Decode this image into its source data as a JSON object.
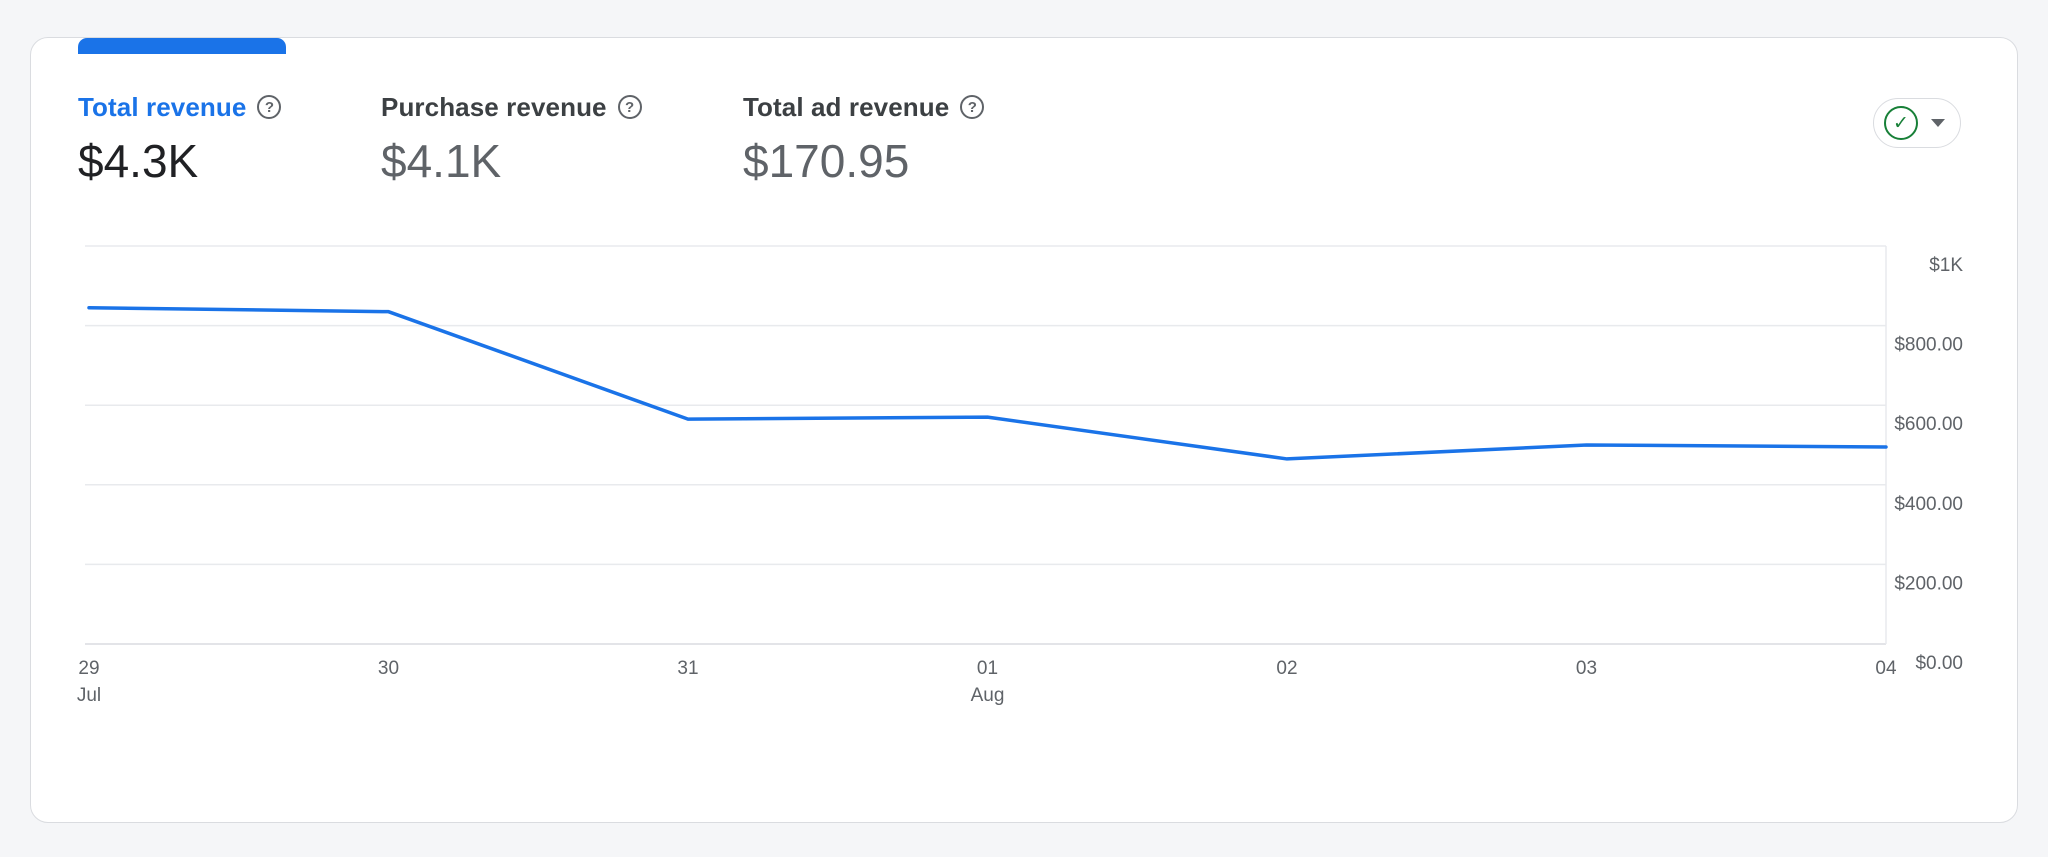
{
  "colors": {
    "accent": "#1a73e8",
    "text_primary": "#202124",
    "text_secondary": "#5f6368",
    "grid": "#e8eaed",
    "baseline": "#dadce0",
    "border": "#dadce0",
    "success": "#188038",
    "card_bg": "#ffffff",
    "page_bg": "#f5f6f8"
  },
  "icons": {
    "help": "?",
    "check": "✓"
  },
  "metrics": [
    {
      "label": "Total revenue",
      "value": "$4.3K",
      "active": true
    },
    {
      "label": "Purchase revenue",
      "value": "$4.1K",
      "active": false
    },
    {
      "label": "Total ad revenue",
      "value": "$170.95",
      "active": false
    }
  ],
  "chart_data": {
    "type": "line",
    "title": "",
    "xlabel": "",
    "ylabel": "",
    "legend": "none",
    "grid": true,
    "y_axis_side": "right",
    "ylim": [
      0,
      1000
    ],
    "x": [
      {
        "label": "29",
        "sublabel": "Jul"
      },
      {
        "label": "30",
        "sublabel": ""
      },
      {
        "label": "31",
        "sublabel": ""
      },
      {
        "label": "01",
        "sublabel": "Aug"
      },
      {
        "label": "02",
        "sublabel": ""
      },
      {
        "label": "03",
        "sublabel": ""
      },
      {
        "label": "04",
        "sublabel": ""
      }
    ],
    "y_ticks": [
      {
        "value": 1000,
        "label": "$1K"
      },
      {
        "value": 800,
        "label": "$800.00"
      },
      {
        "value": 600,
        "label": "$600.00"
      },
      {
        "value": 400,
        "label": "$400.00"
      },
      {
        "value": 200,
        "label": "$200.00"
      },
      {
        "value": 0,
        "label": "$0.00"
      }
    ],
    "series": [
      {
        "name": "Total revenue",
        "color": "#1a73e8",
        "values": [
          845,
          835,
          565,
          570,
          465,
          500,
          495
        ]
      }
    ]
  }
}
